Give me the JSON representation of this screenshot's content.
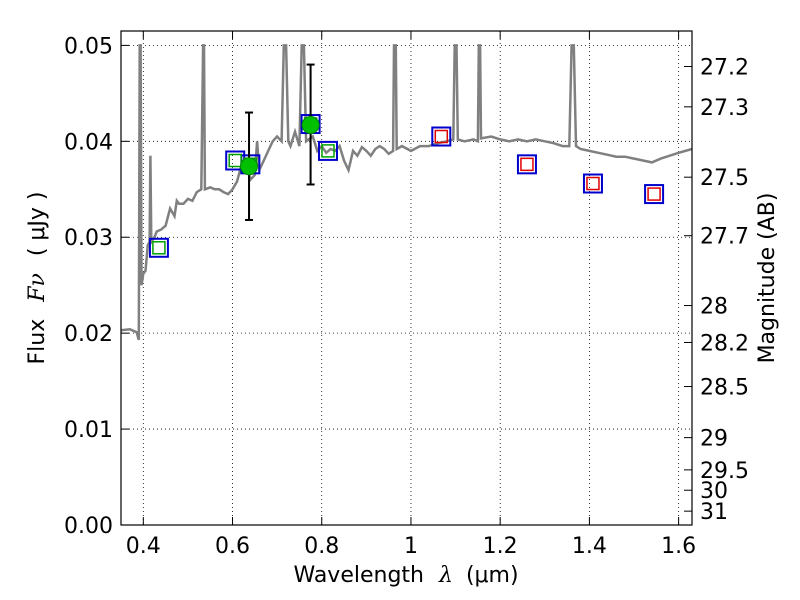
{
  "chart_data": {
    "type": "scatter",
    "title": "",
    "x_axis": {
      "label_prefix": "Wavelength",
      "label_symbol": "λ",
      "label_unit": "(μm)",
      "range": [
        0.35,
        1.63
      ],
      "ticks": [
        {
          "value": 0.4,
          "label": "0.4"
        },
        {
          "value": 0.6,
          "label": "0.6"
        },
        {
          "value": 0.8,
          "label": "0.8"
        },
        {
          "value": 1.0,
          "label": "1"
        },
        {
          "value": 1.2,
          "label": "1.2"
        },
        {
          "value": 1.4,
          "label": "1.4"
        },
        {
          "value": 1.6,
          "label": "1.6"
        }
      ]
    },
    "y_axis": {
      "label_prefix": "Flux",
      "label_symbol": "Fν",
      "label_unit": "( μJy )",
      "range": [
        0.0,
        0.0515
      ],
      "ticks": [
        {
          "value": 0.0,
          "label": "0.00"
        },
        {
          "value": 0.01,
          "label": "0.01"
        },
        {
          "value": 0.02,
          "label": "0.02"
        },
        {
          "value": 0.03,
          "label": "0.03"
        },
        {
          "value": 0.04,
          "label": "0.04"
        },
        {
          "value": 0.05,
          "label": "0.05"
        }
      ]
    },
    "y2_axis": {
      "label": "Magnitude (AB)",
      "ticks": [
        {
          "value": 27.2,
          "label": "27.2"
        },
        {
          "value": 27.3,
          "label": "27.3"
        },
        {
          "value": 27.5,
          "label": "27.5"
        },
        {
          "value": 27.7,
          "label": "27.7"
        },
        {
          "value": 28,
          "label": "28"
        },
        {
          "value": 28.2,
          "label": "28.2"
        },
        {
          "value": 28.5,
          "label": "28.5"
        },
        {
          "value": 29,
          "label": "29"
        },
        {
          "value": 29.5,
          "label": "29.5"
        },
        {
          "value": 30,
          "label": "30"
        },
        {
          "value": 31,
          "label": "31"
        }
      ]
    },
    "grid": true,
    "series": [
      {
        "kind": "spectrum",
        "color": "#808080",
        "points": [
          [
            0.35,
            0.0203
          ],
          [
            0.37,
            0.0204
          ],
          [
            0.385,
            0.0201
          ],
          [
            0.39,
            0.0193
          ],
          [
            0.392,
            0.05
          ],
          [
            0.394,
            0.05
          ],
          [
            0.396,
            0.025
          ],
          [
            0.4,
            0.0262
          ],
          [
            0.405,
            0.0265
          ],
          [
            0.41,
            0.0292
          ],
          [
            0.414,
            0.0295
          ],
          [
            0.416,
            0.0385
          ],
          [
            0.418,
            0.0295
          ],
          [
            0.425,
            0.03
          ],
          [
            0.43,
            0.0306
          ],
          [
            0.44,
            0.0308
          ],
          [
            0.45,
            0.0312
          ],
          [
            0.46,
            0.033
          ],
          [
            0.47,
            0.0322
          ],
          [
            0.475,
            0.0338
          ],
          [
            0.48,
            0.0335
          ],
          [
            0.49,
            0.0335
          ],
          [
            0.5,
            0.034
          ],
          [
            0.51,
            0.0338
          ],
          [
            0.52,
            0.0347
          ],
          [
            0.53,
            0.035
          ],
          [
            0.534,
            0.05
          ],
          [
            0.536,
            0.05
          ],
          [
            0.538,
            0.035
          ],
          [
            0.55,
            0.0352
          ],
          [
            0.56,
            0.035
          ],
          [
            0.57,
            0.035
          ],
          [
            0.58,
            0.0347
          ],
          [
            0.59,
            0.0345
          ],
          [
            0.6,
            0.035
          ],
          [
            0.61,
            0.0358
          ],
          [
            0.62,
            0.0375
          ],
          [
            0.63,
            0.038
          ],
          [
            0.64,
            0.036
          ],
          [
            0.65,
            0.0365
          ],
          [
            0.655,
            0.04
          ],
          [
            0.66,
            0.037
          ],
          [
            0.67,
            0.038
          ],
          [
            0.68,
            0.039
          ],
          [
            0.69,
            0.04
          ],
          [
            0.7,
            0.0405
          ],
          [
            0.71,
            0.04
          ],
          [
            0.715,
            0.05
          ],
          [
            0.72,
            0.05
          ],
          [
            0.725,
            0.04
          ],
          [
            0.73,
            0.0395
          ],
          [
            0.74,
            0.041
          ],
          [
            0.75,
            0.0395
          ],
          [
            0.755,
            0.05
          ],
          [
            0.76,
            0.05
          ],
          [
            0.765,
            0.04
          ],
          [
            0.78,
            0.0405
          ],
          [
            0.79,
            0.039
          ],
          [
            0.8,
            0.0395
          ],
          [
            0.81,
            0.0388
          ],
          [
            0.82,
            0.0392
          ],
          [
            0.83,
            0.039
          ],
          [
            0.84,
            0.0395
          ],
          [
            0.85,
            0.038
          ],
          [
            0.86,
            0.037
          ],
          [
            0.87,
            0.039
          ],
          [
            0.88,
            0.0385
          ],
          [
            0.89,
            0.0394
          ],
          [
            0.9,
            0.039
          ],
          [
            0.91,
            0.0385
          ],
          [
            0.92,
            0.0392
          ],
          [
            0.93,
            0.0395
          ],
          [
            0.94,
            0.0392
          ],
          [
            0.95,
            0.0387
          ],
          [
            0.96,
            0.039
          ],
          [
            0.962,
            0.05
          ],
          [
            0.966,
            0.05
          ],
          [
            0.968,
            0.0392
          ],
          [
            0.98,
            0.0395
          ],
          [
            1.0,
            0.039
          ],
          [
            1.02,
            0.0395
          ],
          [
            1.04,
            0.0395
          ],
          [
            1.06,
            0.0398
          ],
          [
            1.08,
            0.04
          ],
          [
            1.095,
            0.0402
          ],
          [
            1.098,
            0.05
          ],
          [
            1.102,
            0.05
          ],
          [
            1.105,
            0.0402
          ],
          [
            1.12,
            0.04
          ],
          [
            1.14,
            0.0402
          ],
          [
            1.15,
            0.04
          ],
          [
            1.152,
            0.05
          ],
          [
            1.155,
            0.05
          ],
          [
            1.157,
            0.0403
          ],
          [
            1.18,
            0.0405
          ],
          [
            1.2,
            0.0402
          ],
          [
            1.22,
            0.04
          ],
          [
            1.24,
            0.0402
          ],
          [
            1.26,
            0.04
          ],
          [
            1.28,
            0.0402
          ],
          [
            1.3,
            0.04
          ],
          [
            1.32,
            0.0398
          ],
          [
            1.34,
            0.0395
          ],
          [
            1.355,
            0.0395
          ],
          [
            1.36,
            0.05
          ],
          [
            1.365,
            0.05
          ],
          [
            1.37,
            0.0395
          ],
          [
            1.38,
            0.0392
          ],
          [
            1.4,
            0.039
          ],
          [
            1.42,
            0.0388
          ],
          [
            1.44,
            0.0386
          ],
          [
            1.46,
            0.0384
          ],
          [
            1.48,
            0.0384
          ],
          [
            1.5,
            0.0382
          ],
          [
            1.52,
            0.038
          ],
          [
            1.54,
            0.0378
          ],
          [
            1.56,
            0.0382
          ],
          [
            1.58,
            0.0385
          ],
          [
            1.6,
            0.0388
          ],
          [
            1.63,
            0.0392
          ]
        ]
      },
      {
        "kind": "observed",
        "color": "#00c000",
        "points": [
          {
            "x": 0.637,
            "y": 0.0374,
            "yerr_low": 0.0318,
            "yerr_high": 0.043
          },
          {
            "x": 0.775,
            "y": 0.0417,
            "yerr_low": 0.0355,
            "yerr_high": 0.048
          }
        ]
      },
      {
        "kind": "model_band_square",
        "color": "#0000cc",
        "points": [
          {
            "x": 0.435,
            "y": 0.0289
          },
          {
            "x": 0.606,
            "y": 0.038
          },
          {
            "x": 0.64,
            "y": 0.0376
          },
          {
            "x": 0.775,
            "y": 0.0418
          },
          {
            "x": 0.814,
            "y": 0.039
          },
          {
            "x": 1.068,
            "y": 0.0405
          },
          {
            "x": 1.26,
            "y": 0.0376
          },
          {
            "x": 1.408,
            "y": 0.0356
          },
          {
            "x": 1.545,
            "y": 0.0345
          }
        ]
      },
      {
        "kind": "synthetic_square_green",
        "color": "#00a000",
        "points": [
          {
            "x": 0.435,
            "y": 0.0289
          },
          {
            "x": 0.606,
            "y": 0.038
          },
          {
            "x": 0.64,
            "y": 0.0376
          },
          {
            "x": 0.775,
            "y": 0.0418
          },
          {
            "x": 0.814,
            "y": 0.039
          }
        ]
      },
      {
        "kind": "synthetic_square_red",
        "color": "#e00000",
        "points": [
          {
            "x": 1.068,
            "y": 0.0405
          },
          {
            "x": 1.26,
            "y": 0.0376
          },
          {
            "x": 1.408,
            "y": 0.0356
          },
          {
            "x": 1.545,
            "y": 0.0345
          }
        ]
      }
    ]
  }
}
